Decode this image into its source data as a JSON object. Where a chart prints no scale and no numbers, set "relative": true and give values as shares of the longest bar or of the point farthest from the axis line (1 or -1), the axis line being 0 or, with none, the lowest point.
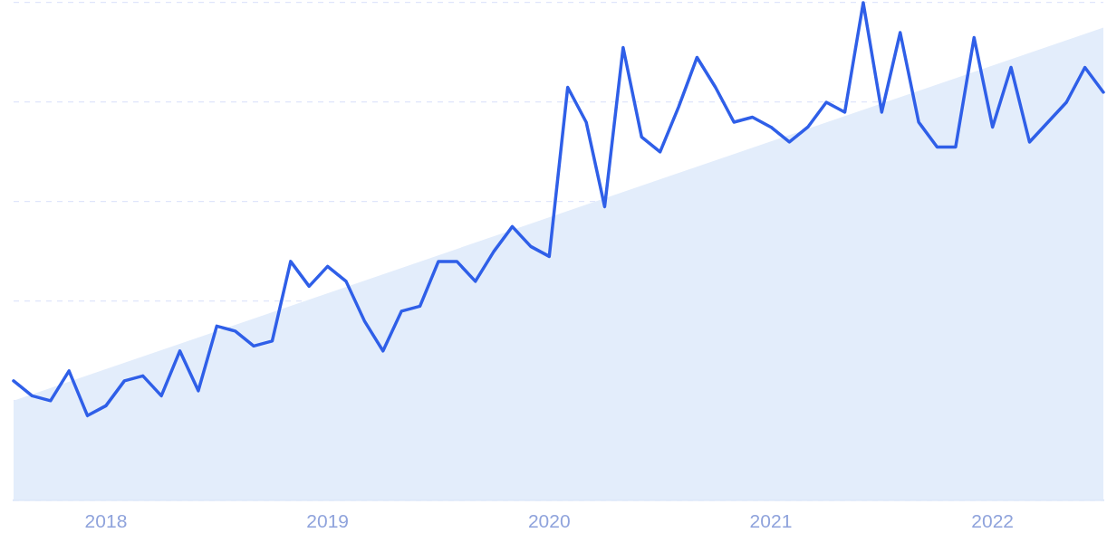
{
  "chart_data": {
    "type": "line",
    "relative": true,
    "grid": "y",
    "legend": false,
    "marker": "none",
    "line_style": "solid",
    "x": [
      "2017-08",
      "2017-09",
      "2017-10",
      "2017-11",
      "2017-12",
      "2018-01",
      "2018-02",
      "2018-03",
      "2018-04",
      "2018-05",
      "2018-06",
      "2018-07",
      "2018-08",
      "2018-09",
      "2018-10",
      "2018-11",
      "2018-12",
      "2019-01",
      "2019-02",
      "2019-03",
      "2019-04",
      "2019-05",
      "2019-06",
      "2019-07",
      "2019-08",
      "2019-09",
      "2019-10",
      "2019-11",
      "2019-12",
      "2020-01",
      "2020-02",
      "2020-03",
      "2020-04",
      "2020-05",
      "2020-06",
      "2020-07",
      "2020-08",
      "2020-09",
      "2020-10",
      "2020-11",
      "2020-12",
      "2021-01",
      "2021-02",
      "2021-03",
      "2021-04",
      "2021-05",
      "2021-06",
      "2021-07",
      "2021-08",
      "2021-09",
      "2021-10",
      "2021-11",
      "2021-12",
      "2022-01",
      "2022-02",
      "2022-03",
      "2022-04",
      "2022-05",
      "2022-06",
      "2022-07"
    ],
    "xlim": [
      "2017-08",
      "2022-07"
    ],
    "xticks": [
      {
        "value": "2018-01",
        "label": "2018"
      },
      {
        "value": "2019-01",
        "label": "2019"
      },
      {
        "value": "2020-01",
        "label": "2020"
      },
      {
        "value": "2021-01",
        "label": "2021"
      },
      {
        "value": "2022-01",
        "label": "2022"
      }
    ],
    "series": [
      {
        "type": "area",
        "color": "#e3edfb",
        "x": [
          "2017-08",
          "2022-07"
        ],
        "values": [
          0.2,
          0.95
        ]
      },
      {
        "color": "#2f5fe8",
        "values": [
          0.24,
          0.21,
          0.2,
          0.26,
          0.17,
          0.19,
          0.24,
          0.25,
          0.21,
          0.3,
          0.22,
          0.35,
          0.34,
          0.31,
          0.32,
          0.48,
          0.43,
          0.47,
          0.44,
          0.36,
          0.3,
          0.38,
          0.39,
          0.48,
          0.48,
          0.44,
          0.5,
          0.55,
          0.51,
          0.49,
          0.83,
          0.76,
          0.59,
          0.91,
          0.73,
          0.7,
          0.79,
          0.89,
          0.83,
          0.76,
          0.77,
          0.75,
          0.72,
          0.75,
          0.8,
          0.78,
          1,
          0.78,
          0.94,
          0.76,
          0.71,
          0.71,
          0.93,
          0.75,
          0.87,
          0.72,
          0.76,
          0.8,
          0.87,
          0.82
        ]
      }
    ]
  }
}
